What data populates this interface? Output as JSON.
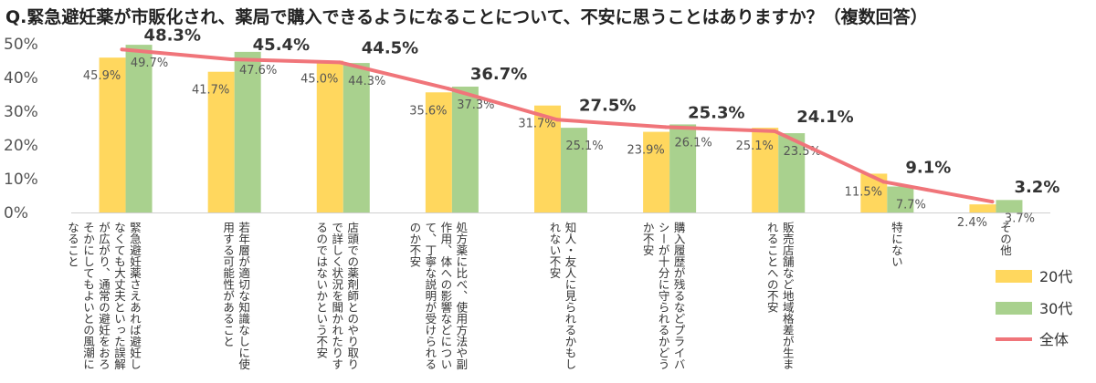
{
  "chart_data": {
    "type": "bar",
    "title": "Q.緊急避妊薬が市販化され、薬局で購入できるようになることについて、不安に思うことはありますか？（複数回答）",
    "categories": [
      "緊急避妊薬さえあれば避妊しなくても大丈夫といった誤解が広がり、通常の避妊をおろそかにしてもよいとの風潮になること",
      "若年層が適切な知識なしに使用する可能性があること",
      "店頭での薬剤師とのやり取りで詳しく状況を聞かれたりするのではないかという不安",
      "処方薬に比べ、使用方法や副作用、体への影響などについて、丁寧な説明が受けられるのか不安",
      "知人・友人に見られるかもしれない不安",
      "購入履歴が残るなどプライバシーが十分に守られるかどうか不安",
      "販売店舗など地域格差が生まれることへの不安",
      "特にない",
      "その他"
    ],
    "category_lines": [
      [
        "緊急避妊薬さえあれば避妊し",
        "なくても大丈夫といった誤解",
        "が広がり、通常の避妊をおろ",
        "そかにしてもよいとの風潮に",
        "なること"
      ],
      [
        "若年層が適切な知識なしに使",
        "用する可能性があること"
      ],
      [
        "店頭での薬剤師とのやり取り",
        "で詳しく状況を聞かれたりす",
        "るのではないかという不安"
      ],
      [
        "処方薬に比べ、使用方法や副",
        "作用、体への影響などについ",
        "て、丁寧な説明が受けられる",
        "のか不安"
      ],
      [
        "知人・友人に見られるかもし",
        "れない不安"
      ],
      [
        "購入履歴が残るなどプライバ",
        "シーが十分に守られるかどう",
        "か不安"
      ],
      [
        "販売店舗など地域格差が生ま",
        "れることへの不安"
      ],
      [
        "特にない"
      ],
      [
        "その他"
      ]
    ],
    "series": [
      {
        "name": "20代",
        "kind": "bar",
        "color": "#FFD75E",
        "values": [
          45.9,
          41.7,
          45.0,
          35.6,
          31.7,
          23.9,
          25.1,
          11.5,
          2.4
        ],
        "labels": [
          "45.9%",
          "41.7%",
          "45.0%",
          "35.6%",
          "31.7%",
          "23.9%",
          "25.1%",
          "11.5%",
          "2.4%"
        ]
      },
      {
        "name": "30代",
        "kind": "bar",
        "color": "#A9D18E",
        "values": [
          49.7,
          47.6,
          44.3,
          37.3,
          25.1,
          26.1,
          23.5,
          7.7,
          3.7
        ],
        "labels": [
          "49.7%",
          "47.6%",
          "44.3%",
          "37.3%",
          "25.1%",
          "26.1%",
          "23.5%",
          "7.7%",
          "3.7%"
        ]
      },
      {
        "name": "全体",
        "kind": "line",
        "color": "#F0757A",
        "values": [
          48.3,
          45.4,
          44.5,
          36.7,
          27.5,
          25.3,
          24.1,
          9.1,
          3.2
        ],
        "labels": [
          "48.3%",
          "45.4%",
          "44.5%",
          "36.7%",
          "27.5%",
          "25.3%",
          "24.1%",
          "9.1%",
          "3.2%"
        ]
      }
    ],
    "ylim": [
      0,
      50
    ],
    "yticks": [
      0,
      10,
      20,
      30,
      40,
      50
    ],
    "ytick_labels": [
      "0%",
      "10%",
      "20%",
      "30%",
      "40%",
      "50%"
    ],
    "grid": false,
    "legend_position": "bottom-right",
    "xlabel": "",
    "ylabel": ""
  }
}
